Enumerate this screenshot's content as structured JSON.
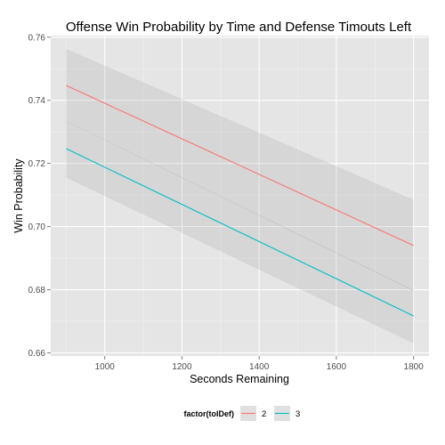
{
  "chart_data": {
    "type": "line",
    "title": "Offense Win Probability by Time and Defense Timouts Left",
    "xlabel": "Seconds Remaining",
    "ylabel": "Win Probability",
    "xlim": [
      860,
      1840
    ],
    "ylim": [
      0.659,
      0.7605
    ],
    "x_ticks": [
      1000,
      1200,
      1400,
      1600,
      1800
    ],
    "x_tick_labels": [
      "1000",
      "1200",
      "1400",
      "1600",
      "1800"
    ],
    "y_ticks": [
      0.66,
      0.68,
      0.7,
      0.72,
      0.74,
      0.76
    ],
    "y_tick_labels": [
      "0.66",
      "0.68",
      "0.70",
      "0.72",
      "0.74",
      "0.76"
    ],
    "grid": true,
    "legend_position": "bottom",
    "legend_title": "factor(tolDef)",
    "series": [
      {
        "name": "2",
        "color": "#F8766D",
        "x": [
          900,
          1800
        ],
        "y": [
          0.7447,
          0.694
        ],
        "ci_lower": [
          0.7333,
          0.6795
        ],
        "ci_upper": [
          0.7563,
          0.7085
        ]
      },
      {
        "name": "3",
        "color": "#00BFC4",
        "x": [
          900,
          1800
        ],
        "y": [
          0.7247,
          0.6717
        ],
        "ci_lower": [
          0.7155,
          0.663
        ],
        "ci_upper": [
          0.7335,
          0.68
        ]
      }
    ]
  }
}
